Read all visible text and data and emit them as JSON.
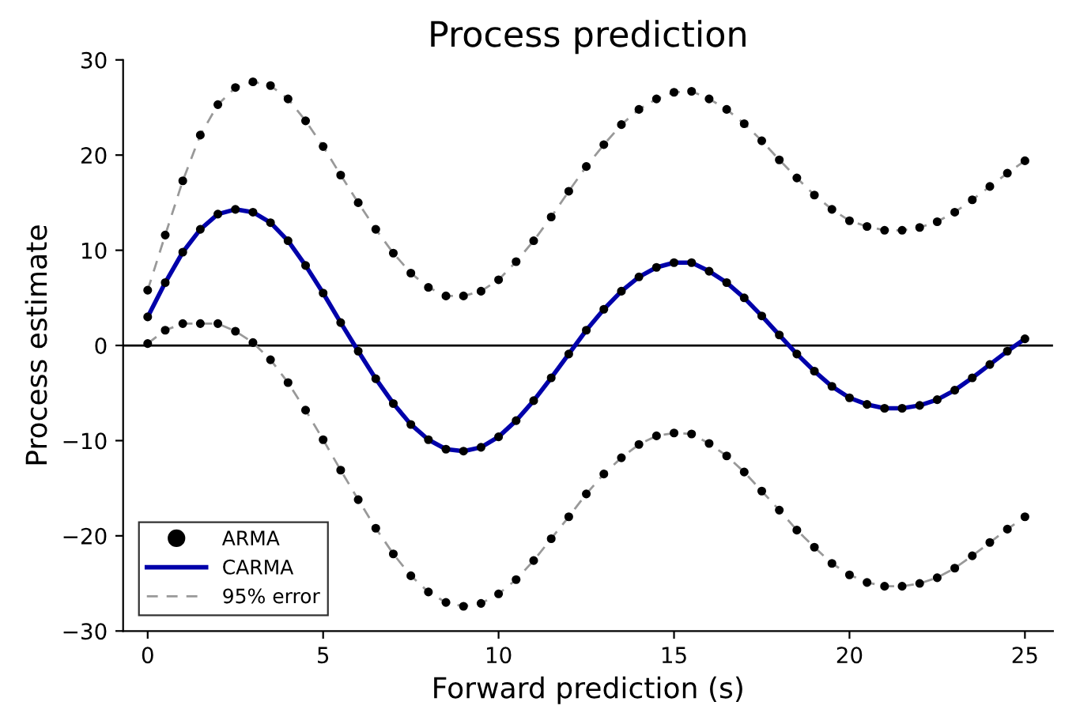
{
  "chart_data": {
    "type": "line",
    "title": "Process prediction",
    "xlabel": "Forward prediction (s)",
    "ylabel": "Process estimate",
    "x": [
      0,
      0.5,
      1,
      1.5,
      2,
      2.5,
      3,
      3.5,
      4,
      4.5,
      5,
      5.5,
      6,
      6.5,
      7,
      7.5,
      8,
      8.5,
      9,
      9.5,
      10,
      10.5,
      11,
      11.5,
      12,
      12.5,
      13,
      13.5,
      14,
      14.5,
      15,
      15.5,
      16,
      16.5,
      17,
      17.5,
      18,
      18.5,
      19,
      19.5,
      20,
      20.5,
      21,
      21.5,
      22,
      22.5,
      23,
      23.5,
      24,
      24.5,
      25
    ],
    "series": [
      {
        "name": "95% error",
        "line_style": "dashed",
        "marker": "none",
        "color": "#999999",
        "values": [
          5.8,
          11.6,
          17.3,
          22.1,
          25.3,
          27.1,
          27.7,
          27.3,
          25.9,
          23.6,
          20.9,
          17.9,
          15.0,
          12.2,
          9.7,
          7.6,
          6.1,
          5.2,
          5.2,
          5.7,
          6.9,
          8.8,
          11.0,
          13.5,
          16.2,
          18.8,
          21.1,
          23.2,
          24.8,
          25.9,
          26.6,
          26.7,
          25.9,
          24.8,
          23.3,
          21.5,
          19.5,
          17.6,
          15.8,
          14.3,
          13.1,
          12.5,
          12.1,
          12.1,
          12.4,
          13.0,
          14.0,
          15.3,
          16.7,
          18.1,
          19.4
        ]
      },
      {
        "line_style": "dashed",
        "marker": "none",
        "color": "#999999",
        "values": [
          0.2,
          1.6,
          2.3,
          2.3,
          2.3,
          1.5,
          0.3,
          -1.5,
          -3.9,
          -6.8,
          -9.9,
          -13.1,
          -16.2,
          -19.2,
          -21.9,
          -24.2,
          -25.9,
          -27.0,
          -27.4,
          -27.1,
          -26.1,
          -24.6,
          -22.6,
          -20.3,
          -18.0,
          -15.6,
          -13.5,
          -11.8,
          -10.4,
          -9.5,
          -9.2,
          -9.3,
          -10.3,
          -11.6,
          -13.3,
          -15.3,
          -17.3,
          -19.4,
          -21.2,
          -22.9,
          -24.1,
          -24.9,
          -25.3,
          -25.3,
          -25.0,
          -24.4,
          -23.4,
          -22.1,
          -20.7,
          -19.3,
          -18.0
        ]
      },
      {
        "name": "CARMA",
        "line_style": "solid",
        "marker": "none",
        "color": "#0000aa",
        "values": [
          3.0,
          6.6,
          9.8,
          12.2,
          13.8,
          14.3,
          14.0,
          12.9,
          11.0,
          8.4,
          5.5,
          2.4,
          -0.6,
          -3.5,
          -6.1,
          -8.3,
          -9.9,
          -10.9,
          -11.1,
          -10.7,
          -9.6,
          -7.9,
          -5.8,
          -3.4,
          -0.9,
          1.6,
          3.8,
          5.7,
          7.2,
          8.2,
          8.7,
          8.7,
          7.8,
          6.6,
          5.0,
          3.1,
          1.1,
          -0.9,
          -2.7,
          -4.3,
          -5.5,
          -6.2,
          -6.6,
          -6.6,
          -6.3,
          -5.7,
          -4.7,
          -3.4,
          -2.0,
          -0.6,
          0.7
        ]
      },
      {
        "name": "ARMA",
        "type": "scatter",
        "marker": "circle",
        "color": "#000000",
        "values": [
          3.0,
          6.6,
          9.8,
          12.2,
          13.8,
          14.3,
          14.0,
          12.9,
          11.0,
          8.4,
          5.5,
          2.4,
          -0.6,
          -3.5,
          -6.1,
          -8.3,
          -9.9,
          -10.9,
          -11.1,
          -10.7,
          -9.6,
          -7.9,
          -5.8,
          -3.4,
          -0.9,
          1.6,
          3.8,
          5.7,
          7.2,
          8.2,
          8.7,
          8.7,
          7.8,
          6.6,
          5.0,
          3.1,
          1.1,
          -0.9,
          -2.7,
          -4.3,
          -5.5,
          -6.2,
          -6.6,
          -6.6,
          -6.3,
          -5.7,
          -4.7,
          -3.4,
          -2.0,
          -0.6,
          0.7
        ]
      },
      {
        "type": "scatter",
        "marker": "circle",
        "color": "#000000",
        "values": [
          5.8,
          11.6,
          17.3,
          22.1,
          25.3,
          27.1,
          27.7,
          27.3,
          25.9,
          23.6,
          20.9,
          17.9,
          15.0,
          12.2,
          9.7,
          7.6,
          6.1,
          5.2,
          5.2,
          5.7,
          6.9,
          8.8,
          11.0,
          13.5,
          16.2,
          18.8,
          21.1,
          23.2,
          24.8,
          25.9,
          26.6,
          26.7,
          25.9,
          24.8,
          23.3,
          21.5,
          19.5,
          17.6,
          15.8,
          14.3,
          13.1,
          12.5,
          12.1,
          12.1,
          12.4,
          13.0,
          14.0,
          15.3,
          16.7,
          18.1,
          19.4
        ]
      },
      {
        "type": "scatter",
        "marker": "circle",
        "color": "#000000",
        "values": [
          0.2,
          1.6,
          2.3,
          2.3,
          2.3,
          1.5,
          0.3,
          -1.5,
          -3.9,
          -6.8,
          -9.9,
          -13.1,
          -16.2,
          -19.2,
          -21.9,
          -24.2,
          -25.9,
          -27.0,
          -27.4,
          -27.1,
          -26.1,
          -24.6,
          -22.6,
          -20.3,
          -18.0,
          -15.6,
          -13.5,
          -11.8,
          -10.4,
          -9.5,
          -9.2,
          -9.3,
          -10.3,
          -11.6,
          -13.3,
          -15.3,
          -17.3,
          -19.4,
          -21.2,
          -22.9,
          -24.1,
          -24.9,
          -25.3,
          -25.3,
          -25.0,
          -24.4,
          -23.4,
          -22.1,
          -20.7,
          -19.3,
          -18.0
        ]
      }
    ],
    "xlim": [
      -0.7,
      25.8
    ],
    "ylim": [
      -30,
      30
    ],
    "xticks": [
      0,
      5,
      10,
      15,
      20,
      25
    ],
    "yticks": [
      {
        "value": -30,
        "label": "−30"
      },
      {
        "value": -20,
        "label": "−20"
      },
      {
        "value": -10,
        "label": "−10"
      },
      0,
      10,
      20,
      30
    ],
    "ref_lines": [
      {
        "axis": "y",
        "value": 0,
        "color": "#000000",
        "line_style": "solid"
      }
    ],
    "grid": false,
    "legend": "bottom left"
  }
}
